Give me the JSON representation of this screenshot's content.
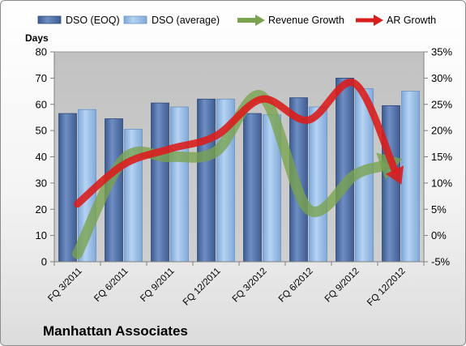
{
  "company": "Manhattan Associates",
  "chart_data": {
    "type": "bar",
    "categories": [
      "FQ 3/2011",
      "FQ 6/2011",
      "FQ 9/2011",
      "FQ 12/2011",
      "FQ 3/2012",
      "FQ 6/2012",
      "FQ 9/2012",
      "FQ 12/2012"
    ],
    "ylabel": "Days",
    "ylim": [
      0,
      80
    ],
    "yticks": [
      "0",
      "10",
      "20",
      "30",
      "40",
      "50",
      "60",
      "70",
      "80"
    ],
    "y2lim": [
      -5,
      35
    ],
    "y2ticks": [
      "-5%",
      "0%",
      "5%",
      "10%",
      "15%",
      "20%",
      "25%",
      "30%",
      "35%"
    ],
    "legend_position": "top",
    "grid": false,
    "series": [
      {
        "name": "DSO (EOQ)",
        "type": "bar",
        "axis": "left",
        "color": "#4f6fa6",
        "values": [
          56.5,
          54.5,
          60.5,
          62,
          56.5,
          62.5,
          70,
          59.5
        ]
      },
      {
        "name": "DSO (average)",
        "type": "bar",
        "axis": "left",
        "color": "#8fb8e6",
        "values": [
          58,
          50.5,
          59,
          62,
          56,
          59,
          66,
          65
        ]
      },
      {
        "name": "Revenue Growth",
        "type": "line",
        "axis": "right",
        "color": "#7aa34d",
        "values": [
          -3.5,
          14.5,
          15,
          16,
          26.5,
          5,
          11.5,
          14.5
        ]
      },
      {
        "name": "AR Growth",
        "type": "line",
        "axis": "right",
        "color": "#d91e1e",
        "values": [
          6,
          13.5,
          16.5,
          19,
          26,
          22,
          29,
          10
        ]
      }
    ]
  }
}
